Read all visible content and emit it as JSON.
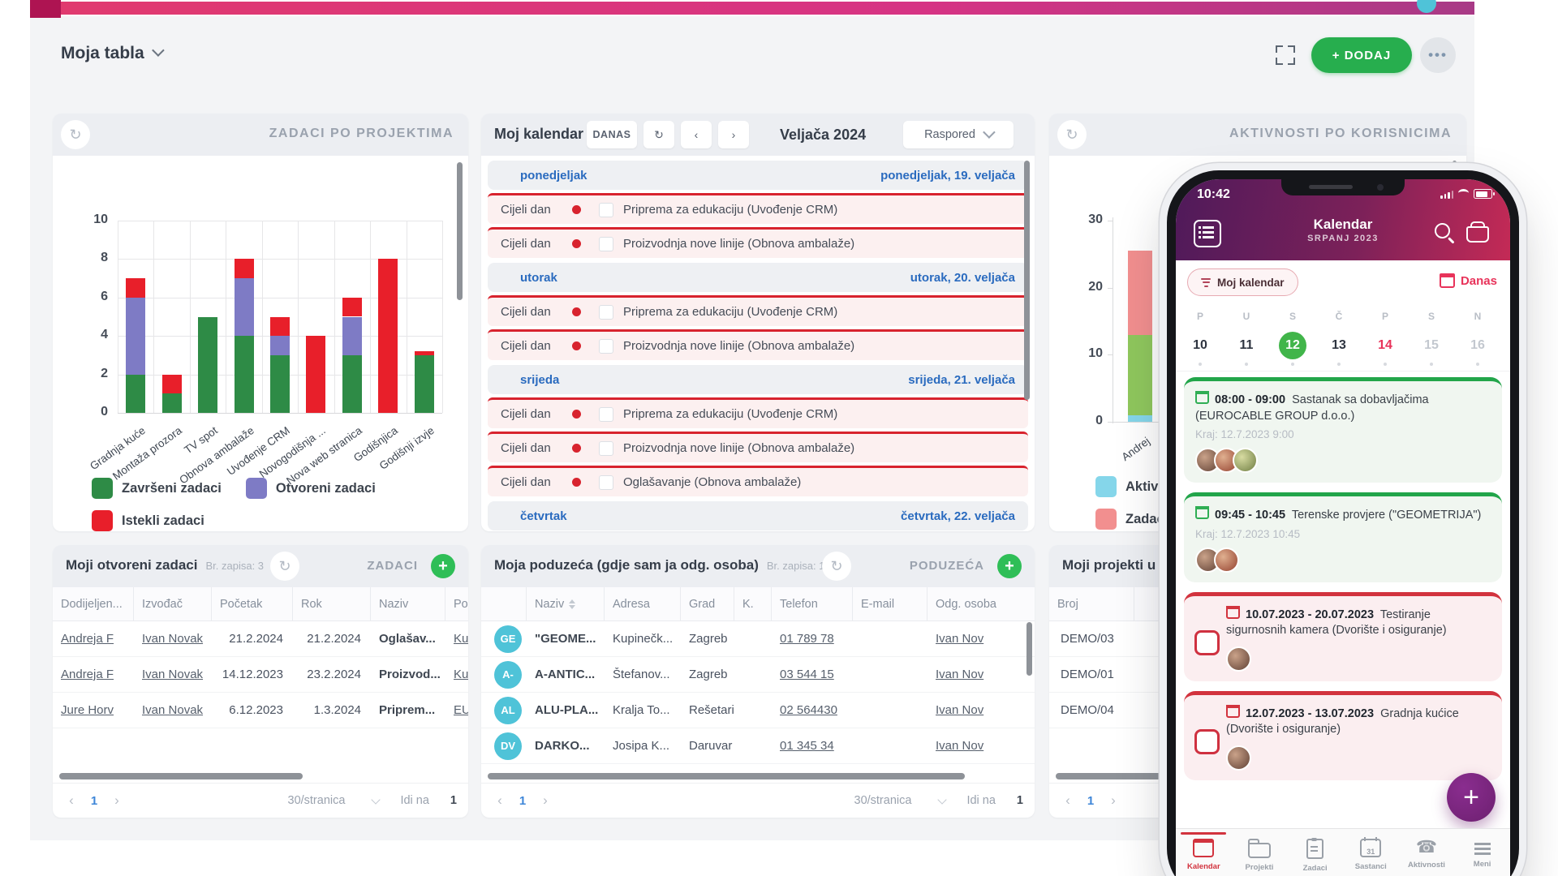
{
  "topbar": {
    "board_title": "Moja tabla",
    "add_button": "+ DODAJ"
  },
  "colors": {
    "accent_pink": "#d63384",
    "topbar_square": "#ae1452",
    "green_button": "#27ae4e",
    "plus_green": "#2fbe57",
    "page_bg": "#f3f4f6",
    "panel_head": "#eceef2",
    "calendar_blue": "#2a6bbf",
    "event_red": "#d8232e",
    "event_bg": "#fcf0f0",
    "teal_avatar": "#4fc3d8",
    "phone_purple": "#4f1a5a",
    "phone_crimson": "#c42a56",
    "fab_purple": "#6d2070",
    "nav_active_red": "#d2333e",
    "selected_day_green": "#41b54a"
  },
  "chart_data": [
    {
      "type": "bar",
      "stacked": true,
      "title": "ZADACI PO PROJEKTIMA",
      "categories": [
        "Gradnja kuće",
        "Montaža prozora",
        "TV spot",
        "Obnova ambalaže",
        "Uvođenje CRM",
        "Novogodišnja ...",
        "Nova web stranica",
        "Godišnjica",
        "Godišnji izvje"
      ],
      "series": [
        {
          "name": "Završeni zadaci",
          "color": "#2e8b46",
          "values": [
            2,
            1,
            5,
            4,
            3,
            0,
            3,
            0,
            3
          ]
        },
        {
          "name": "Otvoreni zadaci",
          "color": "#7e7bc5",
          "values": [
            4,
            0,
            0,
            3,
            1,
            0,
            2,
            0,
            0
          ]
        },
        {
          "name": "Istekli zadaci",
          "color": "#e81f2a",
          "values": [
            1,
            1,
            0,
            1,
            1,
            4,
            1,
            8,
            0.2
          ]
        }
      ],
      "ylim": [
        0,
        10
      ],
      "yticks": [
        10,
        8,
        6,
        4,
        2,
        0
      ],
      "grid": true,
      "legend_position": "bottom"
    },
    {
      "type": "bar",
      "stacked": true,
      "title": "AKTIVNOSTI PO KORISNICIMA",
      "categories": [
        "Andrej"
      ],
      "series": [
        {
          "name": "Aktiv",
          "color": "#85d6ea",
          "values": [
            1
          ]
        },
        {
          "name": "",
          "color": "#8fc75d",
          "values": [
            12
          ]
        },
        {
          "name": "Zadac",
          "color": "#f28f8f",
          "values": [
            12.5
          ]
        }
      ],
      "legend": [
        {
          "label": "Aktiv",
          "color": "#85d6ea"
        },
        {
          "label": "Zadac",
          "color": "#f28f8f"
        }
      ],
      "ylim": [
        0,
        30
      ],
      "yticks": [
        30,
        20,
        10,
        0
      ],
      "grid": false,
      "legend_position": "bottom"
    }
  ],
  "calendar": {
    "title": "Moj kalendar",
    "today_button": "DANAS",
    "month": "Veljača 2024",
    "view": "Raspored",
    "all_day_label": "Cijeli dan",
    "days": [
      {
        "name": "ponedjeljak",
        "date": "ponedjeljak, 19. veljača",
        "events": [
          "Priprema za edukaciju (Uvođenje CRM)",
          "Proizvodnja nove linije (Obnova ambalaže)"
        ]
      },
      {
        "name": "utorak",
        "date": "utorak, 20. veljača",
        "events": [
          "Priprema za edukaciju (Uvođenje CRM)",
          "Proizvodnja nove linije (Obnova ambalaže)"
        ]
      },
      {
        "name": "srijeda",
        "date": "srijeda, 21. veljača",
        "events": [
          "Priprema za edukaciju (Uvođenje CRM)",
          "Proizvodnja nove linije (Obnova ambalaže)",
          "Oglašavanje (Obnova ambalaže)"
        ]
      },
      {
        "name": "četvrtak",
        "date": "četvrtak, 22. veljača",
        "events": []
      }
    ]
  },
  "tasks": {
    "title": "Moji otvoreni zadaci",
    "records": "Br. zapisa: 3",
    "entity_link": "ZADACI",
    "columns": [
      "Dodijeljen...",
      "Izvođač",
      "Početak",
      "Rok",
      "Naziv",
      "Po"
    ],
    "rows": [
      {
        "cells": [
          "Andreja F",
          "Ivan Novak",
          "21.2.2024",
          "21.2.2024",
          "Oglašav...",
          "Ku"
        ]
      },
      {
        "cells": [
          "Andreja F",
          "Ivan Novak",
          "14.12.2023",
          "23.2.2024",
          "Proizvod...",
          "Ku"
        ]
      },
      {
        "cells": [
          "Jure Horv",
          "Ivan Novak",
          "6.12.2023",
          "1.3.2024",
          "Priprem...",
          "EU"
        ]
      }
    ],
    "pagination": {
      "prev": "‹",
      "page": "1",
      "next": "›",
      "per_page": "30/stranica",
      "goto_label": "Idi na",
      "goto_value": "1"
    }
  },
  "companies": {
    "title": "Moja poduzeća (gdje sam ja odg. osoba)",
    "records": "Br. zapisa: 10",
    "entity_link": "PODUZEĆA",
    "columns": [
      "",
      "Naziv",
      "Adresa",
      "Grad",
      "K.",
      "Telefon",
      "E-mail",
      "Odg. osoba"
    ],
    "rows": [
      {
        "initials": "GE",
        "naziv": "\"GEOME...",
        "adresa": "Kupinečk...",
        "grad": "Zagreb",
        "telefon": "01 789 78",
        "email": "",
        "odg_osoba": "Ivan Nov"
      },
      {
        "initials": "A-",
        "naziv": "A-ANTIC...",
        "adresa": "Štefanov...",
        "grad": "Zagreb",
        "telefon": "03 544 15",
        "email": "",
        "odg_osoba": "Ivan Nov"
      },
      {
        "initials": "AL",
        "naziv": "ALU-PLA...",
        "adresa": "Kralja To...",
        "grad": "Rešetari",
        "telefon": "02 564430",
        "email": "",
        "odg_osoba": "Ivan Nov"
      },
      {
        "initials": "DV",
        "naziv": "DARKO...",
        "adresa": "Josipa K...",
        "grad": "Daruvar",
        "telefon": "01 345 34",
        "email": "",
        "odg_osoba": "Ivan Nov"
      }
    ],
    "pagination": {
      "prev": "‹",
      "page": "1",
      "next": "›",
      "per_page": "30/stranica",
      "goto_label": "Idi na",
      "goto_value": "1"
    }
  },
  "projects": {
    "title": "Moji projekti u",
    "column": "Broj",
    "rows": [
      "DEMO/03",
      "DEMO/01",
      "DEMO/04"
    ],
    "pagination": {
      "prev": "‹",
      "page": "1",
      "next": "›"
    }
  },
  "phone": {
    "status_time": "10:42",
    "app_title": "Kalendar",
    "app_subtitle": "SRPANJ 2023",
    "filter_chip": "Moj kalendar",
    "today_chip": "Danas",
    "week_letters": [
      "P",
      "U",
      "S",
      "Č",
      "P",
      "S",
      "N"
    ],
    "week_dates": [
      "10",
      "11",
      "12",
      "13",
      "14",
      "15",
      "16"
    ],
    "selected_date": "12",
    "highlight_date": "14",
    "muted_dates": [
      "15",
      "16"
    ],
    "events": [
      {
        "color": "green",
        "time": "08:00 - 09:00",
        "title": "Sastanak sa dobavljačima (EUROCABLE GROUP d.o.o.)",
        "end": "Kraj: 12.7.2023 9:00",
        "avatars": 3,
        "checkbox": false
      },
      {
        "color": "green",
        "time": "09:45 - 10:45",
        "title": "Terenske provjere (\"GEOMETRIJA\")",
        "end": "Kraj: 12.7.2023 10:45",
        "avatars": 2,
        "checkbox": false
      },
      {
        "color": "red",
        "time": "10.07.2023 - 20.07.2023",
        "title": "Testiranje sigurnosnih kamera (Dvorište i osiguranje)",
        "end": "",
        "avatars": 1,
        "checkbox": true
      },
      {
        "color": "red",
        "time": "12.07.2023 - 13.07.2023",
        "title": "Gradnja kućice (Dvorište i osiguranje)",
        "end": "",
        "avatars": 1,
        "checkbox": true
      }
    ],
    "nav": [
      {
        "label": "Kalendar",
        "icon": "calendar",
        "active": true
      },
      {
        "label": "Projekti",
        "icon": "folder",
        "active": false
      },
      {
        "label": "Zadaci",
        "icon": "clipboard",
        "active": false
      },
      {
        "label": "Sastanci",
        "icon": "calendar-31",
        "active": false
      },
      {
        "label": "Aktivnosti",
        "icon": "phone",
        "active": false
      },
      {
        "label": "Meni",
        "icon": "menu",
        "active": false
      }
    ]
  }
}
